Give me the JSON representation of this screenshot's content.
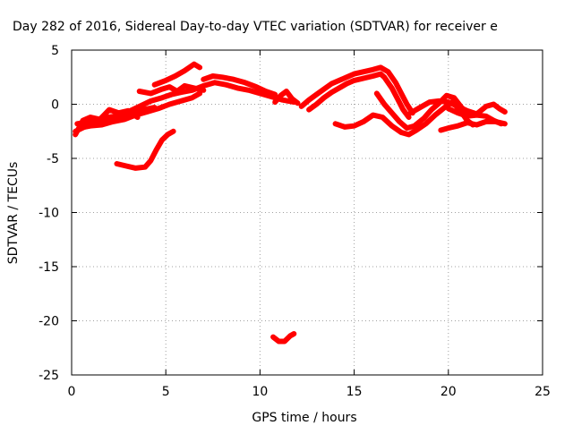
{
  "chart_data": {
    "type": "line",
    "title": "Day 282 of 2016, Sidereal Day-to-day VTEC variation (SDTVAR) for receiver e",
    "xlabel": "GPS time / hours",
    "ylabel": "SDTVAR / TECUs",
    "xlim": [
      0,
      25
    ],
    "ylim": [
      -25,
      5
    ],
    "xticks": [
      0,
      5,
      10,
      15,
      20,
      25
    ],
    "yticks": [
      5,
      0,
      -5,
      -10,
      -15,
      -20,
      -25
    ],
    "xtick_labels": [
      "0",
      "5",
      "10",
      "15",
      "20",
      "25"
    ],
    "ytick_labels": [
      "5",
      "0",
      "-5",
      "-10",
      "-15",
      "-20",
      "-25"
    ],
    "grid": true,
    "legend": "none",
    "colors": {
      "series": "#ff0000",
      "grid": "#a0a0a0",
      "frame": "#000000"
    },
    "series": [
      {
        "points": [
          [
            0.2,
            -2.5
          ],
          [
            0.8,
            -2.0
          ],
          [
            1.5,
            -1.5
          ],
          [
            2.0,
            -1.2
          ],
          [
            2.6,
            -1.0
          ],
          [
            3.2,
            -0.8
          ],
          [
            3.8,
            -0.5
          ],
          [
            4.4,
            -0.3
          ]
        ]
      },
      {
        "points": [
          [
            0.2,
            -2.8
          ],
          [
            0.6,
            -1.5
          ],
          [
            1.0,
            -1.2
          ],
          [
            1.5,
            -1.4
          ],
          [
            2.0,
            -0.5
          ],
          [
            2.5,
            -0.8
          ],
          [
            3.0,
            -0.6
          ],
          [
            3.5,
            -1.2
          ]
        ]
      },
      {
        "points": [
          [
            0.3,
            -1.8
          ],
          [
            1.0,
            -1.6
          ],
          [
            1.7,
            -1.3
          ],
          [
            2.4,
            -1.1
          ],
          [
            3.0,
            -0.7
          ],
          [
            3.6,
            -0.2
          ],
          [
            4.2,
            0.3
          ],
          [
            4.8,
            0.6
          ],
          [
            5.3,
            0.9
          ],
          [
            5.8,
            1.1
          ],
          [
            6.4,
            1.3
          ],
          [
            7.0,
            1.7
          ],
          [
            7.6,
            2.0
          ],
          [
            8.2,
            1.8
          ],
          [
            8.8,
            1.5
          ],
          [
            9.4,
            1.3
          ],
          [
            10.0,
            1.0
          ],
          [
            10.6,
            0.7
          ],
          [
            11.2,
            0.4
          ],
          [
            11.8,
            0.2
          ]
        ]
      },
      {
        "points": [
          [
            0.4,
            -2.2
          ],
          [
            1.0,
            -2.0
          ],
          [
            1.6,
            -1.9
          ],
          [
            2.2,
            -1.6
          ],
          [
            2.8,
            -1.4
          ],
          [
            3.4,
            -1.0
          ],
          [
            4.0,
            -0.7
          ],
          [
            4.6,
            -0.4
          ],
          [
            5.2,
            0.0
          ],
          [
            5.8,
            0.3
          ],
          [
            6.4,
            0.6
          ],
          [
            6.8,
            1.0
          ]
        ]
      },
      {
        "points": [
          [
            3.6,
            1.2
          ],
          [
            4.2,
            1.0
          ],
          [
            4.8,
            1.4
          ],
          [
            5.2,
            1.6
          ],
          [
            5.6,
            1.2
          ],
          [
            6.0,
            1.7
          ],
          [
            6.5,
            1.5
          ],
          [
            7.0,
            1.3
          ]
        ]
      },
      {
        "points": [
          [
            4.4,
            1.8
          ],
          [
            5.0,
            2.2
          ],
          [
            5.5,
            2.6
          ],
          [
            6.0,
            3.1
          ],
          [
            6.5,
            3.7
          ],
          [
            6.8,
            3.4
          ]
        ]
      },
      {
        "points": [
          [
            7.0,
            2.3
          ],
          [
            7.5,
            2.6
          ],
          [
            8.0,
            2.5
          ],
          [
            8.6,
            2.3
          ],
          [
            9.2,
            2.0
          ],
          [
            9.8,
            1.6
          ],
          [
            10.3,
            1.2
          ],
          [
            10.8,
            0.9
          ]
        ]
      },
      {
        "points": [
          [
            10.8,
            0.2
          ],
          [
            11.1,
            0.8
          ],
          [
            11.4,
            1.2
          ],
          [
            11.7,
            0.5
          ],
          [
            12.0,
            0.1
          ]
        ]
      },
      {
        "points": [
          [
            12.2,
            -0.2
          ],
          [
            12.6,
            0.4
          ],
          [
            13.0,
            0.9
          ],
          [
            13.4,
            1.4
          ],
          [
            13.8,
            1.9
          ],
          [
            14.2,
            2.2
          ],
          [
            14.6,
            2.5
          ],
          [
            15.0,
            2.8
          ],
          [
            15.5,
            3.0
          ],
          [
            16.0,
            3.2
          ],
          [
            16.4,
            3.4
          ],
          [
            16.8,
            3.0
          ],
          [
            17.2,
            2.0
          ],
          [
            17.5,
            1.0
          ],
          [
            17.8,
            0.0
          ],
          [
            18.1,
            -0.8
          ]
        ]
      },
      {
        "points": [
          [
            12.6,
            -0.5
          ],
          [
            13.0,
            0.0
          ],
          [
            13.4,
            0.6
          ],
          [
            13.8,
            1.1
          ],
          [
            14.2,
            1.5
          ],
          [
            14.6,
            1.9
          ],
          [
            15.0,
            2.2
          ],
          [
            15.5,
            2.4
          ],
          [
            16.0,
            2.6
          ],
          [
            16.4,
            2.8
          ],
          [
            16.6,
            2.5
          ],
          [
            17.0,
            1.5
          ],
          [
            17.3,
            0.5
          ],
          [
            17.6,
            -0.5
          ],
          [
            17.9,
            -1.2
          ]
        ]
      },
      {
        "points": [
          [
            14.0,
            -1.8
          ],
          [
            14.5,
            -2.1
          ],
          [
            15.0,
            -2.0
          ],
          [
            15.5,
            -1.6
          ],
          [
            16.0,
            -1.0
          ],
          [
            16.5,
            -1.2
          ],
          [
            17.0,
            -2.0
          ],
          [
            17.5,
            -2.6
          ],
          [
            17.9,
            -2.8
          ],
          [
            18.3,
            -2.4
          ],
          [
            18.8,
            -1.8
          ],
          [
            19.3,
            -1.0
          ],
          [
            19.8,
            -0.3
          ],
          [
            20.2,
            0.2
          ],
          [
            20.6,
            -0.5
          ],
          [
            21.0,
            -1.5
          ],
          [
            21.3,
            -1.9
          ]
        ]
      },
      {
        "points": [
          [
            16.2,
            1.0
          ],
          [
            16.6,
            0.0
          ],
          [
            17.0,
            -0.8
          ],
          [
            17.4,
            -1.6
          ],
          [
            17.8,
            -2.2
          ],
          [
            18.2,
            -2.0
          ],
          [
            18.7,
            -1.3
          ],
          [
            19.1,
            -0.5
          ],
          [
            19.5,
            0.1
          ],
          [
            19.9,
            0.8
          ],
          [
            20.3,
            0.6
          ],
          [
            20.7,
            -0.3
          ],
          [
            21.1,
            -1.0
          ]
        ]
      },
      {
        "points": [
          [
            18.0,
            -0.8
          ],
          [
            18.5,
            -0.3
          ],
          [
            19.0,
            0.2
          ],
          [
            19.5,
            0.3
          ],
          [
            20.0,
            0.2
          ],
          [
            20.5,
            -0.2
          ],
          [
            21.0,
            -0.6
          ],
          [
            21.5,
            -0.9
          ],
          [
            22.0,
            -0.2
          ],
          [
            22.4,
            0.0
          ],
          [
            22.7,
            -0.4
          ],
          [
            23.0,
            -0.7
          ]
        ]
      },
      {
        "points": [
          [
            19.6,
            -2.4
          ],
          [
            20.0,
            -2.2
          ],
          [
            20.5,
            -2.0
          ],
          [
            21.0,
            -1.7
          ],
          [
            21.5,
            -1.9
          ],
          [
            22.0,
            -1.6
          ],
          [
            22.5,
            -1.6
          ],
          [
            23.0,
            -1.8
          ]
        ]
      },
      {
        "points": [
          [
            20.0,
            -0.4
          ],
          [
            20.5,
            -0.8
          ],
          [
            21.0,
            -1.1
          ],
          [
            21.5,
            -1.0
          ],
          [
            22.0,
            -1.1
          ],
          [
            22.4,
            -1.5
          ],
          [
            22.8,
            -1.8
          ]
        ]
      },
      {
        "points": [
          [
            2.4,
            -5.5
          ],
          [
            2.9,
            -5.7
          ],
          [
            3.4,
            -5.9
          ],
          [
            3.9,
            -5.8
          ],
          [
            4.2,
            -5.2
          ],
          [
            4.5,
            -4.2
          ],
          [
            4.8,
            -3.3
          ],
          [
            5.1,
            -2.8
          ],
          [
            5.4,
            -2.5
          ]
        ]
      },
      {
        "points": [
          [
            10.7,
            -21.5
          ],
          [
            11.0,
            -21.9
          ],
          [
            11.3,
            -21.9
          ],
          [
            11.6,
            -21.4
          ],
          [
            11.8,
            -21.2
          ]
        ]
      }
    ]
  }
}
